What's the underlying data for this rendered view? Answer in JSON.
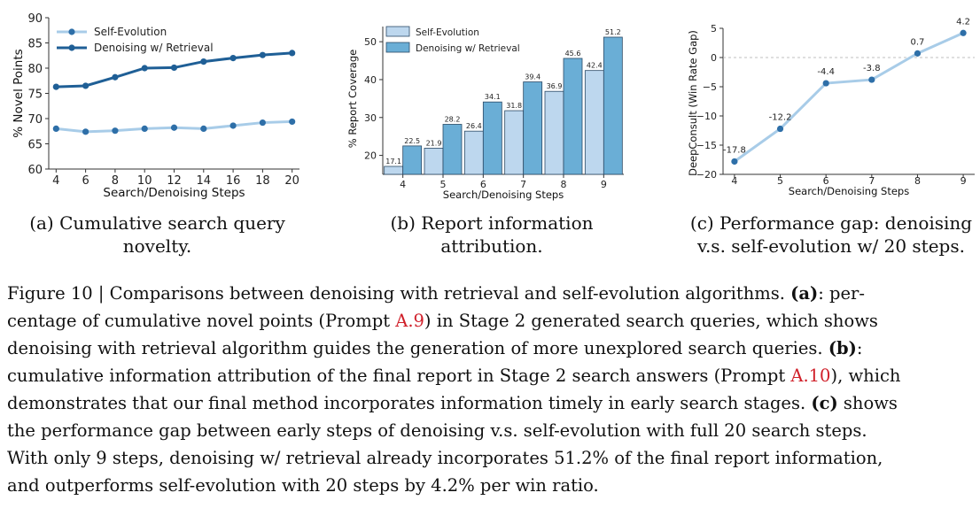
{
  "panels": {
    "a": {
      "caption": "(a) Cumulative search query novelty.",
      "caption_line1": "(a) Cumulative search query",
      "caption_line2": "novelty."
    },
    "b": {
      "caption_line1": "(b) Report information",
      "caption_line2": "attribution."
    },
    "c": {
      "caption_line1": "(c) Performance gap: denoising",
      "caption_line2": "v.s. self-evolution w/ 20 steps."
    }
  },
  "figure_caption": {
    "lines": [
      [
        "Figure 10 | Comparisons between denoising with retrieval and self-evolution algorithms. ",
        "(a)",
        ": per-"
      ],
      [
        "centage of cumulative novel points (Prompt ",
        "A.9",
        ") in Stage 2 generated search queries, which shows"
      ],
      [
        "denoising with retrieval algorithm guides the generation of more unexplored search queries. ",
        "(b)",
        ":"
      ],
      [
        "cumulative information attribution of the final report in Stage 2 search answers (Prompt ",
        "A.10",
        "), which"
      ],
      [
        "demonstrates that our final method incorporates information timely in early search stages. ",
        "(c)",
        " shows"
      ],
      [
        "the performance gap between early steps of denoising v.s. self-evolution with full 20 search steps.",
        "",
        ""
      ],
      [
        "With only 9 steps, denoising w/ retrieval already incorporates 51.2% of the final report information,",
        "",
        ""
      ],
      [
        "and outperforms self-evolution with 20 steps by 4.2% per win ratio.",
        "",
        ""
      ]
    ]
  },
  "colors": {
    "light_blue": "#a8cce8",
    "dark_blue": "#1f5f96",
    "bar_light": "#bdd7ee",
    "bar_dark": "#6aaed6",
    "bar_edge": "#2b4a66",
    "gap_line": "#a8cce8",
    "gap_dot": "#2e6fa8",
    "caption_ref": "#d0202a"
  },
  "chart_data": [
    {
      "type": "line",
      "xlabel": "Search/Denoising Steps",
      "ylabel": "% Novel Points",
      "x": [
        4,
        6,
        8,
        10,
        12,
        14,
        16,
        18,
        20
      ],
      "ylim": [
        60,
        90
      ],
      "yticks": [
        60,
        65,
        70,
        75,
        80,
        85,
        90
      ],
      "grid": false,
      "legend_position": "top-left",
      "series": [
        {
          "name": "Self-Evolution",
          "values": [
            68.0,
            67.4,
            67.6,
            68.0,
            68.2,
            68.0,
            68.6,
            69.2,
            69.4
          ]
        },
        {
          "name": "Denoising w/ Retrieval",
          "values": [
            76.3,
            76.5,
            78.2,
            80.0,
            80.1,
            81.3,
            82.0,
            82.6,
            83.0
          ]
        }
      ]
    },
    {
      "type": "bar",
      "xlabel": "Search/Denoising Steps",
      "ylabel": "% Report Coverage",
      "categories": [
        "4",
        "5",
        "6",
        "7",
        "8",
        "9"
      ],
      "ylim": [
        15,
        54
      ],
      "yticks": [
        20,
        30,
        40,
        50
      ],
      "grid": false,
      "legend_position": "top-left",
      "series": [
        {
          "name": "Self-Evolution",
          "values": [
            17.1,
            21.9,
            26.4,
            31.8,
            36.9,
            42.4
          ]
        },
        {
          "name": "Denoising w/ Retrieval",
          "values": [
            22.5,
            28.2,
            34.1,
            39.4,
            45.6,
            51.2
          ]
        }
      ],
      "data_labels": [
        [
          "17.1",
          "21.9",
          "26.4",
          "31.8",
          "36.9",
          "42.4"
        ],
        [
          "22.5",
          "28.2",
          "34.1",
          "39.4",
          "45.6",
          "51.2"
        ]
      ]
    },
    {
      "type": "line",
      "xlabel": "Search/Denoising Steps",
      "ylabel": "DeepConsult (Win Rate Gap)",
      "x": [
        4,
        5,
        6,
        7,
        8,
        9
      ],
      "ylim": [
        -20,
        5
      ],
      "yticks": [
        -20,
        -15,
        -10,
        -5,
        0,
        5
      ],
      "ytick_labels": [
        "−20",
        "−15",
        "−10",
        "−5",
        "0",
        "5"
      ],
      "grid": false,
      "reference_line": 0,
      "series": [
        {
          "values": [
            -17.8,
            -12.2,
            -4.4,
            -3.8,
            0.7,
            4.2
          ]
        }
      ],
      "data_labels": [
        "-17.8",
        "-12.2",
        "-4.4",
        "-3.8",
        "0.7",
        "4.2"
      ]
    }
  ]
}
